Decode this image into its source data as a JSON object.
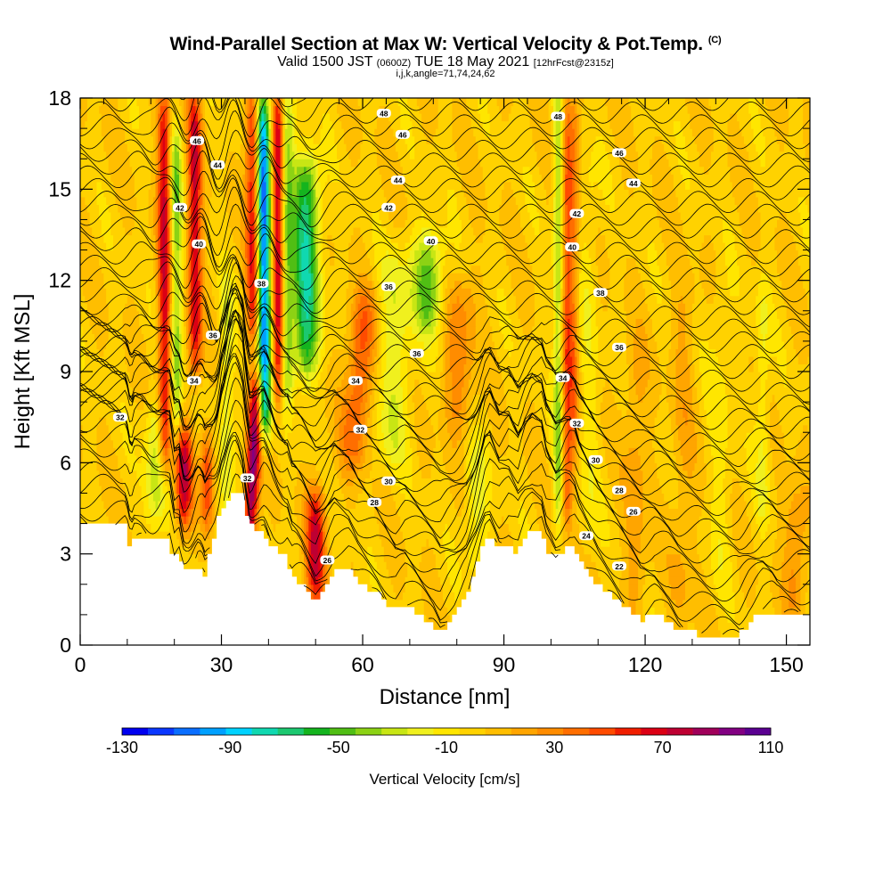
{
  "title": {
    "main": "Wind-Parallel Section at Max W: Vertical Velocity & Pot.Temp.",
    "main_tag": "(C)",
    "valid_prefix": "Valid 1500 JST",
    "valid_utc": "(0600Z)",
    "valid_date": "TUE 18 May 2021",
    "forecast_tag": "[12hrFcst@2315z]",
    "indices": "i,j,k,angle=71,74,24,62"
  },
  "chart_data": {
    "type": "heatmap",
    "xlabel": "Distance [nm]",
    "ylabel": "Height [Kft MSL]",
    "xlim": [
      0,
      155
    ],
    "ylim": [
      0,
      18
    ],
    "x_ticks": [
      0,
      30,
      60,
      90,
      120,
      150
    ],
    "y_ticks": [
      0,
      3,
      6,
      9,
      12,
      15,
      18
    ],
    "colorbar": {
      "label": "Vertical Velocity [cm/s]",
      "tick_labels": [
        -130,
        -90,
        -50,
        -10,
        30,
        70,
        110
      ],
      "bins": [
        -130,
        -120,
        -110,
        -100,
        -90,
        -80,
        -70,
        -60,
        -50,
        -40,
        -30,
        -20,
        -10,
        0,
        10,
        20,
        30,
        40,
        50,
        60,
        70,
        80,
        90,
        100,
        110
      ],
      "colors": [
        "#0000f0",
        "#0a37ff",
        "#0a6eff",
        "#00a0ff",
        "#00d2ff",
        "#10d8b0",
        "#1cc870",
        "#14b41e",
        "#50be14",
        "#8cd214",
        "#c8e614",
        "#f0f01e",
        "#ffe600",
        "#ffd200",
        "#ffbe00",
        "#ffa500",
        "#ff8c00",
        "#ff6e00",
        "#ff4b00",
        "#f01e00",
        "#dc0014",
        "#be0032",
        "#a0005a",
        "#820082",
        "#5a0091"
      ]
    },
    "theta_contours": {
      "units": "C",
      "levels": [
        22,
        24,
        26,
        28,
        30,
        32,
        34,
        36,
        38,
        40,
        42,
        44,
        46,
        48
      ],
      "labels": [
        {
          "text": "32",
          "x": 8.5,
          "y": 7.5
        },
        {
          "text": "34",
          "x": 24.2,
          "y": 8.7
        },
        {
          "text": "36",
          "x": 28.2,
          "y": 10.2
        },
        {
          "text": "38",
          "x": 38.5,
          "y": 11.9
        },
        {
          "text": "40",
          "x": 25.2,
          "y": 13.2
        },
        {
          "text": "42",
          "x": 21.2,
          "y": 14.4
        },
        {
          "text": "44",
          "x": 29.2,
          "y": 15.8
        },
        {
          "text": "46",
          "x": 24.8,
          "y": 16.6
        },
        {
          "text": "32",
          "x": 35.5,
          "y": 5.5
        },
        {
          "text": "34",
          "x": 58.5,
          "y": 8.7
        },
        {
          "text": "32",
          "x": 59.5,
          "y": 7.1
        },
        {
          "text": "30",
          "x": 65.5,
          "y": 5.4
        },
        {
          "text": "28",
          "x": 62.5,
          "y": 4.7
        },
        {
          "text": "26",
          "x": 52.5,
          "y": 2.8
        },
        {
          "text": "36",
          "x": 65.5,
          "y": 11.8
        },
        {
          "text": "36",
          "x": 71.5,
          "y": 9.6
        },
        {
          "text": "40",
          "x": 74.5,
          "y": 13.3
        },
        {
          "text": "42",
          "x": 65.5,
          "y": 14.4
        },
        {
          "text": "44",
          "x": 67.5,
          "y": 15.3
        },
        {
          "text": "46",
          "x": 68.5,
          "y": 16.8
        },
        {
          "text": "48",
          "x": 64.5,
          "y": 17.5
        },
        {
          "text": "48",
          "x": 101.5,
          "y": 17.4
        },
        {
          "text": "46",
          "x": 114.5,
          "y": 16.2
        },
        {
          "text": "44",
          "x": 117.5,
          "y": 15.2
        },
        {
          "text": "42",
          "x": 105.5,
          "y": 14.2
        },
        {
          "text": "40",
          "x": 104.5,
          "y": 13.1
        },
        {
          "text": "38",
          "x": 110.5,
          "y": 11.6
        },
        {
          "text": "36",
          "x": 114.5,
          "y": 9.8
        },
        {
          "text": "34",
          "x": 102.5,
          "y": 8.8
        },
        {
          "text": "32",
          "x": 105.5,
          "y": 7.3
        },
        {
          "text": "30",
          "x": 109.5,
          "y": 6.1
        },
        {
          "text": "28",
          "x": 114.5,
          "y": 5.1
        },
        {
          "text": "26",
          "x": 117.5,
          "y": 4.4
        },
        {
          "text": "24",
          "x": 107.5,
          "y": 3.6
        },
        {
          "text": "22",
          "x": 114.5,
          "y": 2.6
        }
      ]
    },
    "grid": false
  }
}
